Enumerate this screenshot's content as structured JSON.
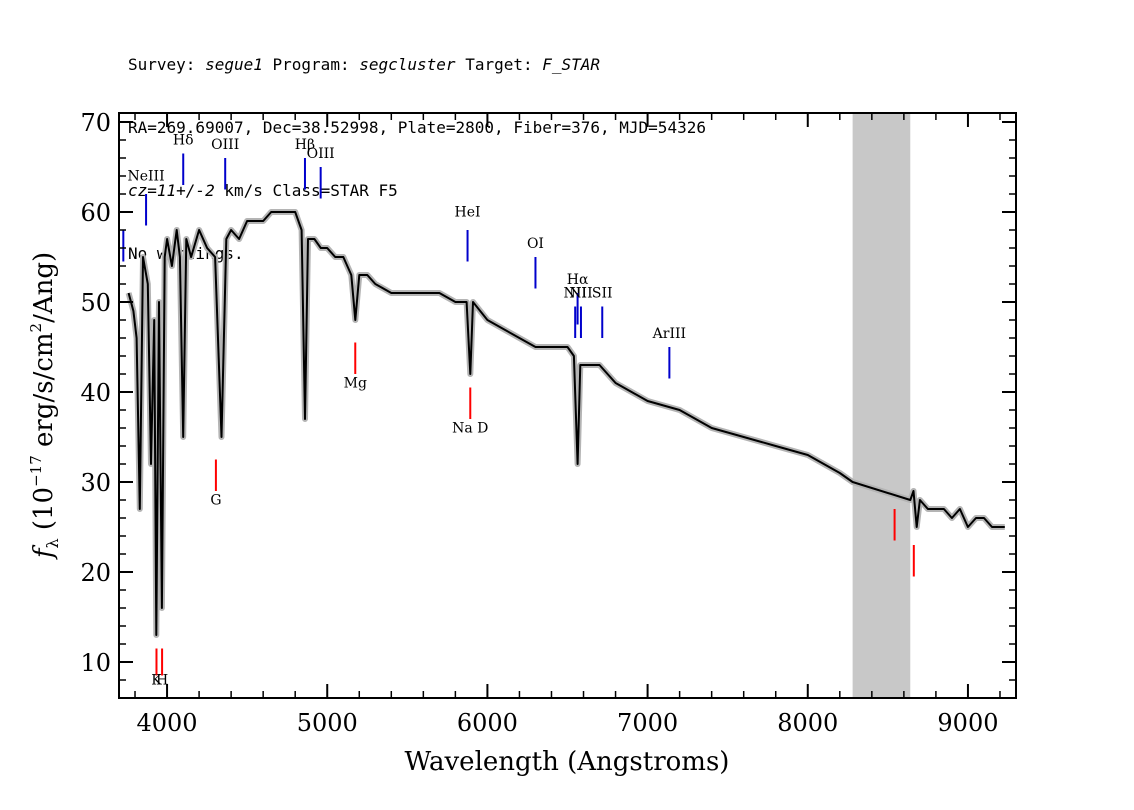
{
  "header": {
    "survey_label": "Survey:",
    "survey": "segue1",
    "program_label": "Program:",
    "program": "segcluster",
    "target_label": "Target:",
    "target": "F_STAR",
    "line2": "RA=269.69007, Dec=38.52998, Plate=2800, Fiber=376, MJD=54326",
    "cz": "cz=11+/-2",
    "cz_rest": " km/s Class=STAR F5",
    "line4": "No warnings."
  },
  "chart_data": {
    "type": "line",
    "title": "",
    "xlabel": "Wavelength (Angstroms)",
    "ylabel_prefix": "f",
    "ylabel_sub": "λ",
    "ylabel_main": " (10",
    "ylabel_exp": "−17",
    "ylabel_units": " erg/s/cm",
    "ylabel_units_exp": "2",
    "ylabel_end": "/Ang)",
    "xlim": [
      3700,
      9300
    ],
    "ylim": [
      6,
      71
    ],
    "xticks": [
      4000,
      5000,
      6000,
      7000,
      8000,
      9000
    ],
    "xtick_labels": [
      "4000",
      "5000",
      "6000",
      "7000",
      "8000",
      "9000"
    ],
    "yticks": [
      10,
      20,
      30,
      40,
      50,
      60,
      70
    ],
    "ytick_labels": [
      "10",
      "20",
      "30",
      "40",
      "50",
      "60",
      "70"
    ],
    "masked_region": [
      8280,
      8640
    ],
    "colors": {
      "spectrum": "#000000",
      "error_band": "#b4b4b4",
      "emission": "#0000cc",
      "absorption": "#ff0000",
      "mask": "#c8c8c8"
    },
    "spectrum": {
      "x": [
        3760,
        3790,
        3810,
        3830,
        3850,
        3880,
        3900,
        3920,
        3933,
        3950,
        3968,
        3985,
        4000,
        4030,
        4060,
        4080,
        4101,
        4120,
        4150,
        4200,
        4250,
        4300,
        4340,
        4370,
        4400,
        4450,
        4500,
        4550,
        4600,
        4650,
        4700,
        4750,
        4800,
        4840,
        4861,
        4880,
        4920,
        4960,
        5000,
        5050,
        5100,
        5150,
        5175,
        5200,
        5250,
        5300,
        5400,
        5500,
        5600,
        5700,
        5800,
        5870,
        5893,
        5910,
        6000,
        6100,
        6200,
        6300,
        6400,
        6500,
        6540,
        6563,
        6580,
        6620,
        6700,
        6800,
        6900,
        7000,
        7200,
        7400,
        7600,
        7800,
        8000,
        8200,
        8280,
        8640,
        8660,
        8680,
        8700,
        8750,
        8800,
        8850,
        8900,
        8950,
        9000,
        9050,
        9100,
        9150,
        9200,
        9230
      ],
      "y": [
        51,
        49,
        46,
        27,
        55,
        52,
        32,
        48,
        13,
        50,
        16,
        55,
        57,
        54,
        58,
        55,
        35,
        57,
        55,
        58,
        56,
        55,
        35,
        57,
        58,
        57,
        59,
        59,
        59,
        60,
        60,
        60,
        60,
        58,
        37,
        57,
        57,
        56,
        56,
        55,
        55,
        53,
        48,
        53,
        53,
        52,
        51,
        51,
        51,
        51,
        50,
        50,
        42,
        50,
        48,
        47,
        46,
        45,
        45,
        45,
        44,
        32,
        43,
        43,
        43,
        41,
        40,
        39,
        38,
        36,
        35,
        34,
        33,
        31,
        30,
        28,
        29,
        25,
        28,
        27,
        27,
        27,
        26,
        27,
        25,
        26,
        26,
        25,
        25,
        25
      ]
    },
    "emission_lines": [
      {
        "label": "",
        "x": 3727,
        "y_bottom": 54.5,
        "y_top": 58,
        "label_y": 60
      },
      {
        "label": "NeIII",
        "x": 3869,
        "y_bottom": 58.5,
        "y_top": 62,
        "label_y": 63.5
      },
      {
        "label": "Hδ",
        "x": 4101,
        "y_bottom": 63,
        "y_top": 66.5,
        "label_y": 67.5
      },
      {
        "label": "OIII",
        "x": 4363,
        "y_bottom": 62.5,
        "y_top": 66,
        "label_y": 67
      },
      {
        "label": "Hβ",
        "x": 4861,
        "y_bottom": 62.5,
        "y_top": 66,
        "label_y": 67
      },
      {
        "label": "OIII",
        "x": 4959,
        "y_bottom": 61.5,
        "y_top": 65,
        "label_y": 66
      },
      {
        "label": "HeI",
        "x": 5876,
        "y_bottom": 54.5,
        "y_top": 58,
        "label_y": 59.5
      },
      {
        "label": "OI",
        "x": 6300,
        "y_bottom": 51.5,
        "y_top": 55,
        "label_y": 56
      },
      {
        "label": "NII",
        "x": 6548,
        "y_bottom": 46,
        "y_top": 49.5,
        "label_y": 50.5
      },
      {
        "label": "Hα",
        "x": 6563,
        "y_bottom": 47.5,
        "y_top": 51,
        "label_y": 52
      },
      {
        "label": "NII",
        "x": 6584,
        "y_bottom": 46,
        "y_top": 49.5,
        "label_y": 50.5
      },
      {
        "label": "SII",
        "x": 6717,
        "y_bottom": 46,
        "y_top": 49.5,
        "label_y": 50.5
      },
      {
        "label": "ArIII",
        "x": 7136,
        "y_bottom": 41.5,
        "y_top": 45,
        "label_y": 46
      }
    ],
    "absorption_lines": [
      {
        "label": "K",
        "x": 3934,
        "y_top": 11.5,
        "y_bottom": 8.5,
        "label_y": 7.5
      },
      {
        "label": "H",
        "x": 3969,
        "y_top": 11.5,
        "y_bottom": 8.5,
        "label_y": 7.5
      },
      {
        "label": "G",
        "x": 4305,
        "y_top": 32.5,
        "y_bottom": 29,
        "label_y": 27.5
      },
      {
        "label": "Mg",
        "x": 5175,
        "y_top": 45.5,
        "y_bottom": 42,
        "label_y": 40.5
      },
      {
        "label": "Na D",
        "x": 5893,
        "y_top": 40.5,
        "y_bottom": 37,
        "label_y": 35.5
      },
      {
        "label": "",
        "x": 8542,
        "y_top": 27,
        "y_bottom": 23.5,
        "label_y": 22
      },
      {
        "label": "",
        "x": 8662,
        "y_top": 23,
        "y_bottom": 19.5,
        "label_y": 18
      }
    ]
  }
}
